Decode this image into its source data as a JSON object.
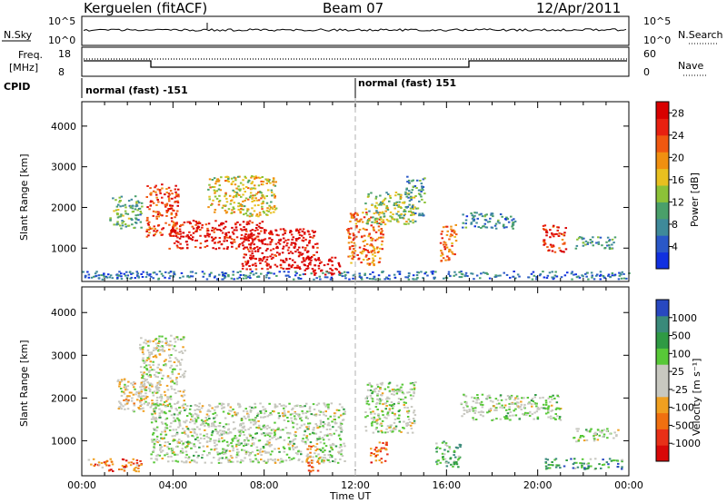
{
  "header": {
    "station": "Kerguelen (fitACF)",
    "beam": "Beam 07",
    "date": "12/Apr/2011"
  },
  "status_panels": {
    "nsky_label": "N.Sky",
    "nsearch_label": "N.Search",
    "freq_label_line1": "Freq.",
    "freq_label_line2": "[MHz]",
    "nave_label": "Nave",
    "cpid_label": "CPID",
    "nsky_ticks": [
      "10^5",
      "10^0"
    ],
    "nsearch_ticks": [
      "10^5",
      "10^0"
    ],
    "freq_ticks": [
      "18",
      "8"
    ],
    "nave_ticks": [
      "60",
      "0"
    ],
    "cpid_segments": [
      {
        "label": "normal (fast) -151",
        "start": 0,
        "end": 12
      },
      {
        "label": "normal (fast) 151",
        "start": 12,
        "end": 24
      }
    ]
  },
  "chart_data": [
    {
      "type": "heatmap",
      "title": "",
      "xlabel": "Time UT",
      "ylabel": "Slant Range [km]",
      "xlim": [
        0,
        24
      ],
      "ylim": [
        180,
        4600
      ],
      "x_ticks": [
        "00:00",
        "04:00",
        "08:00",
        "12:00",
        "16:00",
        "20:00",
        "00:00"
      ],
      "y_ticks": [
        "1000",
        "2000",
        "3000",
        "4000"
      ],
      "colorbar": {
        "label": "Power [dB]",
        "ticks": [
          "4",
          "8",
          "12",
          "16",
          "20",
          "24",
          "28"
        ],
        "range": [
          0,
          30
        ],
        "colors": [
          "#1030e0",
          "#2a58c8",
          "#3f8a9a",
          "#4aa06a",
          "#8cc238",
          "#e8c020",
          "#f09010",
          "#f05810",
          "#e82010",
          "#d80000"
        ]
      },
      "echo_regions": [
        {
          "t0": 1.2,
          "t1": 2.6,
          "r0": 1500,
          "r1": 2300,
          "level": 0.35
        },
        {
          "t0": 2.8,
          "t1": 4.2,
          "r0": 1300,
          "r1": 2600,
          "level": 0.8
        },
        {
          "t0": 3.8,
          "t1": 8.0,
          "r0": 1000,
          "r1": 1700,
          "level": 0.92
        },
        {
          "t0": 7.0,
          "t1": 10.3,
          "r0": 500,
          "r1": 1500,
          "level": 0.95
        },
        {
          "t0": 9.6,
          "t1": 11.3,
          "r0": 350,
          "r1": 800,
          "level": 0.98
        },
        {
          "t0": 5.5,
          "t1": 8.5,
          "r0": 1800,
          "r1": 2800,
          "level": 0.55
        },
        {
          "t0": 11.6,
          "t1": 13.2,
          "r0": 600,
          "r1": 1900,
          "level": 0.72
        },
        {
          "t0": 12.4,
          "t1": 14.6,
          "r0": 1600,
          "r1": 2400,
          "level": 0.45
        },
        {
          "t0": 14.2,
          "t1": 15.0,
          "r0": 1800,
          "r1": 2800,
          "level": 0.3
        },
        {
          "t0": 15.7,
          "t1": 16.4,
          "r0": 700,
          "r1": 1600,
          "level": 0.75
        },
        {
          "t0": 16.6,
          "t1": 19.0,
          "r0": 1500,
          "r1": 1900,
          "level": 0.25
        },
        {
          "t0": 20.2,
          "t1": 21.2,
          "r0": 900,
          "r1": 1600,
          "level": 0.85
        },
        {
          "t0": 21.6,
          "t1": 23.4,
          "r0": 1000,
          "r1": 1300,
          "level": 0.3
        },
        {
          "t0": 0.0,
          "t1": 24.0,
          "r0": 250,
          "r1": 450,
          "level": 0.2
        }
      ]
    },
    {
      "type": "heatmap",
      "title": "",
      "xlabel": "Time UT",
      "ylabel": "Slant Range [km]",
      "xlim": [
        0,
        24
      ],
      "ylim": [
        180,
        4600
      ],
      "x_ticks": [
        "00:00",
        "04:00",
        "08:00",
        "12:00",
        "16:00",
        "20:00",
        "00:00"
      ],
      "y_ticks": [
        "1000",
        "2000",
        "3000",
        "4000"
      ],
      "colorbar": {
        "label": "Velocity [m s⁻¹]",
        "ticks": [
          "1000",
          "500",
          "100",
          "25",
          "-25",
          "-100",
          "-500",
          "-1000"
        ],
        "colors": [
          "#2848c0",
          "#3a8a7a",
          "#2f9a44",
          "#58c838",
          "#c8c8c0",
          "#c8c8c0",
          "#f0a020",
          "#f07010",
          "#e83018",
          "#d80808"
        ]
      },
      "echo_regions": [
        {
          "t0": 0.2,
          "t1": 2.6,
          "r0": 300,
          "r1": 600,
          "level": 0.75
        },
        {
          "t0": 1.5,
          "t1": 2.8,
          "r0": 1700,
          "r1": 2500,
          "level": 0.55
        },
        {
          "t0": 2.5,
          "t1": 4.5,
          "r0": 1800,
          "r1": 3500,
          "level": 0.5
        },
        {
          "t0": 3.0,
          "t1": 11.5,
          "r0": 500,
          "r1": 1900,
          "level": 0.45
        },
        {
          "t0": 9.8,
          "t1": 10.4,
          "r0": 300,
          "r1": 900,
          "level": 0.7
        },
        {
          "t0": 12.4,
          "t1": 14.6,
          "r0": 1200,
          "r1": 2400,
          "level": 0.45
        },
        {
          "t0": 12.6,
          "t1": 13.4,
          "r0": 500,
          "r1": 1000,
          "level": 0.8
        },
        {
          "t0": 15.5,
          "t1": 16.6,
          "r0": 400,
          "r1": 1000,
          "level": 0.3
        },
        {
          "t0": 16.6,
          "t1": 21.0,
          "r0": 1500,
          "r1": 2100,
          "level": 0.45
        },
        {
          "t0": 20.3,
          "t1": 23.7,
          "r0": 350,
          "r1": 600,
          "level": 0.25
        },
        {
          "t0": 21.5,
          "t1": 23.5,
          "r0": 1000,
          "r1": 1300,
          "level": 0.45
        }
      ]
    }
  ]
}
